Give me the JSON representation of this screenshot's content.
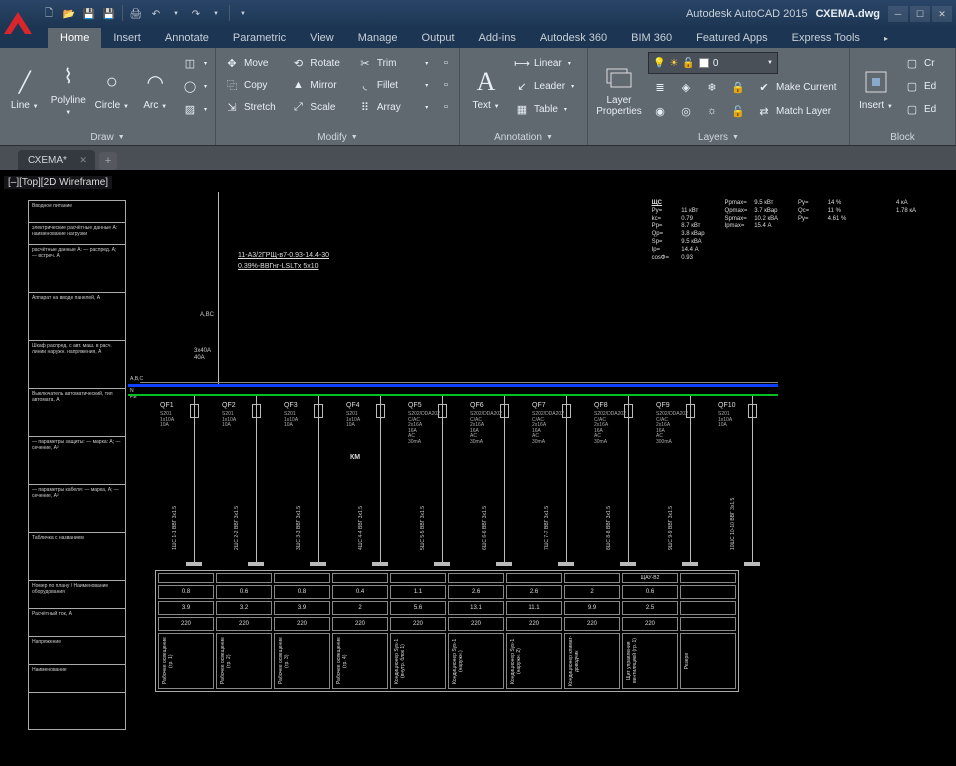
{
  "title": {
    "app": "Autodesk AutoCAD 2015",
    "doc": "СХЕМА.dwg"
  },
  "qat": [
    "new",
    "open",
    "save",
    "saveall",
    "plot",
    "undo",
    "redo"
  ],
  "tabs": [
    "Home",
    "Insert",
    "Annotate",
    "Parametric",
    "View",
    "Manage",
    "Output",
    "Add-ins",
    "Autodesk 360",
    "BIM 360",
    "Featured Apps",
    "Express Tools"
  ],
  "active_tab": "Home",
  "panels": {
    "draw": {
      "title": "Draw",
      "big": [
        "Line",
        "Polyline",
        "Circle",
        "Arc"
      ]
    },
    "modify": {
      "title": "Modify",
      "rows": [
        [
          {
            "l": "Move",
            "i": "✥"
          },
          {
            "l": "Rotate",
            "i": "⟲"
          },
          {
            "l": "Trim",
            "i": "✂"
          }
        ],
        [
          {
            "l": "Copy",
            "i": "⿻"
          },
          {
            "l": "Mirror",
            "i": "▲"
          },
          {
            "l": "Fillet",
            "i": "◟"
          }
        ],
        [
          {
            "l": "Stretch",
            "i": "⇲"
          },
          {
            "l": "Scale",
            "i": "⤢"
          },
          {
            "l": "Array",
            "i": "⠿"
          }
        ]
      ]
    },
    "annotation": {
      "title": "Annotation",
      "text_btn": "Text",
      "rows": [
        {
          "l": "Linear",
          "i": "⟼"
        },
        {
          "l": "Leader",
          "i": "↙"
        },
        {
          "l": "Table",
          "i": "▦"
        }
      ]
    },
    "layers": {
      "title": "Layers",
      "big": "Layer\nProperties",
      "current_layer": "0",
      "btns": [
        "Make Current",
        "Match Layer"
      ]
    },
    "block": {
      "title": "Block",
      "big": "Insert",
      "rows": [
        "Create",
        "Edit",
        "Edit"
      ]
    }
  },
  "doc_tab": "СХЕМА*",
  "viewstate": "[–][Top][2D Wireframe]",
  "diagram": {
    "cable": {
      "line1": "11-А3/2ГРЩ-в7-0.93-14.4-30",
      "line2": "0.39%-ВВГнг-LSLTx  5x10"
    },
    "busbar_y": {
      "blue": 214,
      "green": 224
    },
    "incoming": {
      "label": "A,BC",
      "breaker": "3x40A",
      "current": "40A",
      "phases": "A,B,C",
      "npe": "N\nPE"
    },
    "feeders": [
      {
        "id": "QF1",
        "model": "S201",
        "cur": "1x10A",
        "amp": "10A"
      },
      {
        "id": "QF2",
        "model": "S201",
        "cur": "1x10A",
        "amp": "10A"
      },
      {
        "id": "QF3",
        "model": "S201",
        "cur": "1x10A",
        "amp": "10A"
      },
      {
        "id": "QF4",
        "model": "S201",
        "cur": "1x10A",
        "amp": "10A",
        "extra": "КМ"
      },
      {
        "id": "QF5",
        "model": "S202/DDA202",
        "cur": "C/AC\n2x16A\n16A\nAC\n30mA"
      },
      {
        "id": "QF6",
        "model": "S202/DDA202",
        "cur": "C/AC\n2x16A\n16A\nAC\n30mA"
      },
      {
        "id": "QF7",
        "model": "S202/DDA202",
        "cur": "C/AC\n2x16A\n16A\nAC\n30mA"
      },
      {
        "id": "QF8",
        "model": "S202/DDA202",
        "cur": "C/AC\n2x16A\n16A\nAC\n30mA"
      },
      {
        "id": "QF9",
        "model": "S202/DDA202",
        "cur": "C/AC\n2x16A\n16A\nAC\n300mA"
      },
      {
        "id": "QF10",
        "model": "S201",
        "cur": "1x10A",
        "amp": "10A"
      }
    ],
    "feeder_x_start": 166,
    "feeder_x_step": 62,
    "table": {
      "header": "ЩАУ-В2",
      "rows": [
        [
          "0.8",
          "0.6",
          "0.8",
          "0.4",
          "1.1",
          "2.6",
          "2.6",
          "2",
          "0.6"
        ],
        [
          "3.9",
          "3.2",
          "3.9",
          "2",
          "5.6",
          "13.1",
          "11.1",
          "9.9",
          "2.5"
        ],
        [
          "220",
          "220",
          "220",
          "220",
          "220",
          "220",
          "220",
          "220",
          "220"
        ]
      ],
      "labels": [
        "Рабочее освещение (гр. 1)",
        "Рабочее освещение (гр. 2)",
        "Рабочее освещение (гр. 3)",
        "Рабочее освещение (гр. 4)",
        "Кондиционер Sys-1 (внутр. блок 1)",
        "Кондиционер Sys-1 (наружн.)",
        "Кондиционер Sys-1 (наружн. 2)",
        "Кондиционер климат-доводчик",
        "Щит управления вентиляцией (гр. 1)",
        "Резерв"
      ]
    },
    "info": {
      "title": "ЩС",
      "col1": [
        [
          "Ру=",
          "11 кВт"
        ],
        [
          "kc=",
          "0.79"
        ],
        [
          "Рр=",
          "8.7 кВт"
        ],
        [
          "Qр=",
          "3.8 кВар"
        ],
        [
          "Sр=",
          "9.5 кВА"
        ],
        [
          "Iр=",
          "14.4 А"
        ],
        [
          "cosФ=",
          "0.93"
        ]
      ],
      "col2": [
        [
          "Ррmax=",
          "9.5 кВт"
        ],
        [
          "Qрmax=",
          "3.7 кВар"
        ],
        [
          "Sрmax=",
          "10.2 кВА"
        ],
        [
          "Iрmax=",
          "15.4 А"
        ]
      ],
      "col3": [
        [
          "Ру=",
          "14 %"
        ],
        [
          "Qс=",
          "11 %"
        ],
        [
          "Ру=",
          "4.61 %"
        ]
      ],
      "col4": [
        [
          "",
          "4 кА"
        ],
        [
          "",
          "1.78 кА"
        ]
      ]
    },
    "side_rows": [
      "Вводное питание",
      "электрические расчётные данные А: наименование нагрузки",
      "расчётные данные A: — распред. А; — встреч. A",
      "Аппарат на вводе панелей, А",
      "Шкаф распред. с авт. маш. в расч. линии наружн. напряжения, А",
      "Выключатель автоматический, тип автомата, А",
      "— параметры защиты: — марка: А; — сечение, A²",
      "— параметры кабеля: — марка, А; — сечение, А²",
      "Табличка с названием",
      "Номер по плану / Наименование оборудования",
      "Расчётный ток, А",
      "Напряжение",
      "Наименование"
    ],
    "colors": {
      "blue": "#1040ff",
      "green": "#00c020",
      "frame": "#aaaaaa",
      "bg": "#000000"
    }
  }
}
